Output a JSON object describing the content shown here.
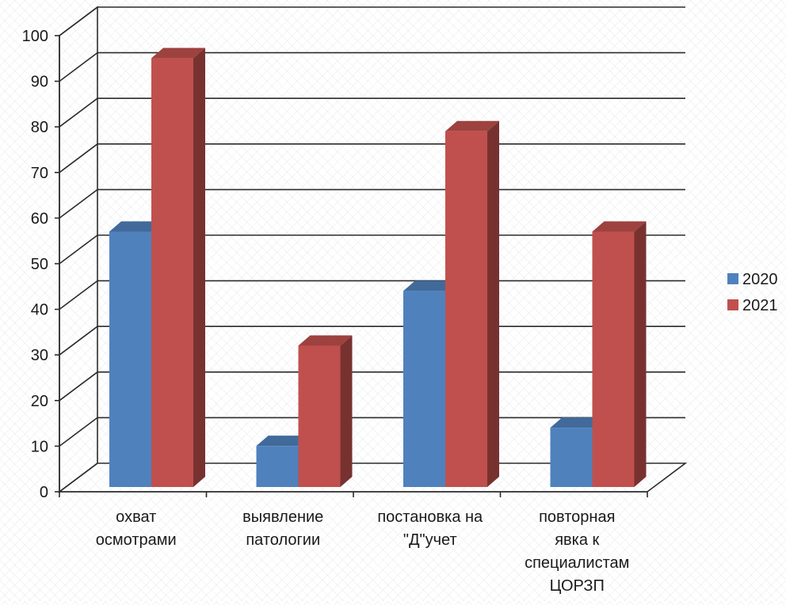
{
  "chart_data": {
    "type": "bar",
    "title": "",
    "xlabel": "",
    "ylabel": "",
    "ylim": [
      0,
      100
    ],
    "yticks": [
      0,
      10,
      20,
      30,
      40,
      50,
      60,
      70,
      80,
      90,
      100
    ],
    "grid": true,
    "three_d": true,
    "legend_position": "right",
    "categories": [
      [
        "охват",
        "осмотрами"
      ],
      [
        "выявление",
        "патологии"
      ],
      [
        "постановка на",
        "\"Д\"учет"
      ],
      [
        "повторная",
        "явка к",
        "специалистам",
        "ЦОРЗП"
      ]
    ],
    "series": [
      {
        "name": "2020",
        "values": [
          56,
          9,
          43,
          13
        ],
        "color": "#4F81BD"
      },
      {
        "name": "2021",
        "values": [
          94,
          31,
          78,
          56
        ],
        "color": "#C0504D"
      }
    ]
  }
}
